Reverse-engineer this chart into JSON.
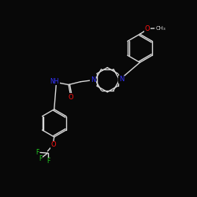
{
  "bg_color": "#080808",
  "bond_color": "#d8d8d8",
  "atom_colors": {
    "N": "#3333ff",
    "O": "#ff1111",
    "F": "#22cc22",
    "C": "#d8d8d8"
  },
  "fig_size": [
    2.5,
    2.5
  ],
  "dpi": 100
}
